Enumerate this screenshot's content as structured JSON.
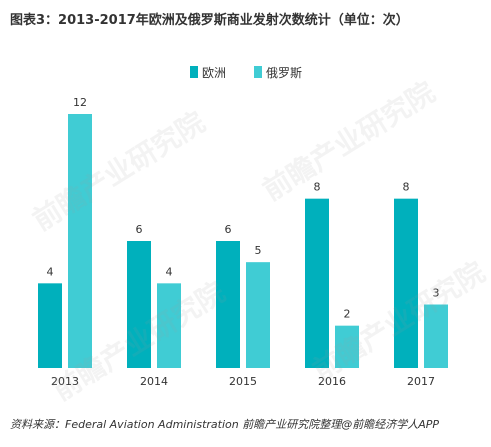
{
  "title": "图表3：2013-2017年欧洲及俄罗斯商业发射次数统计（单位：次）",
  "source": "资料来源：Federal Aviation Administration 前瞻产业研究院整理@前瞻经济学人APP",
  "watermark": "前瞻产业研究院",
  "colors": {
    "europe": "#00b0bc",
    "russia": "#40ccd4"
  },
  "chart_data": {
    "type": "bar",
    "title": "图表3：2013-2017年欧洲及俄罗斯商业发射次数统计（单位：次）",
    "categories": [
      "2013",
      "2014",
      "2015",
      "2016",
      "2017"
    ],
    "series": [
      {
        "name": "欧洲",
        "values": [
          4,
          6,
          6,
          8,
          8
        ]
      },
      {
        "name": "俄罗斯",
        "values": [
          12,
          4,
          5,
          2,
          3
        ]
      }
    ],
    "xlabel": "",
    "ylabel": "",
    "ylim": [
      0,
      12
    ],
    "grid": false,
    "legend": "top"
  }
}
